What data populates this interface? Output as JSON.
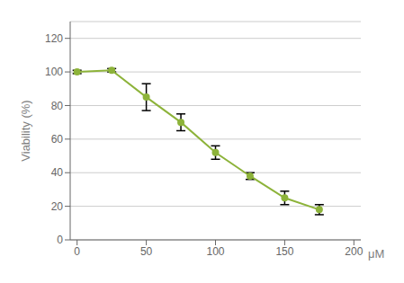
{
  "chart_data": {
    "type": "line",
    "xlabel": "μM",
    "ylabel": "Viability (%)",
    "x": [
      0,
      25,
      50,
      75,
      100,
      125,
      150,
      175
    ],
    "values": [
      100,
      101,
      85,
      70,
      52,
      38,
      25,
      18
    ],
    "errors": [
      1,
      1,
      8,
      5,
      4,
      2,
      4,
      3
    ],
    "color": "#8db33a",
    "marker": "circle",
    "xlim": [
      -5,
      205
    ],
    "ylim": [
      0,
      130
    ],
    "xticks": [
      0,
      50,
      100,
      150,
      200
    ],
    "yticks": [
      0,
      20,
      40,
      60,
      80,
      100,
      120
    ],
    "grid": true
  }
}
